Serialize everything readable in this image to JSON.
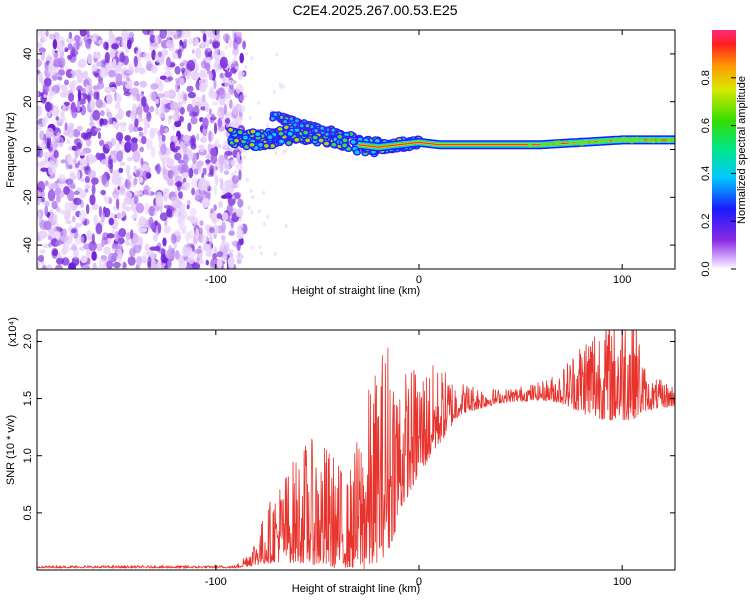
{
  "title": "C2E4.2025.267.00.53.E25",
  "chart_data": [
    {
      "type": "heatmap",
      "name": "spectrogram",
      "xlabel": "Height of straight line (km)",
      "ylabel": "Frequency (Hz)",
      "xlim": [
        -188,
        126
      ],
      "ylim": [
        -50,
        50
      ],
      "xticks": [
        -100,
        0,
        100
      ],
      "xtick_labels": [
        "-100",
        "0",
        "100"
      ],
      "yticks": [
        -40,
        -20,
        0,
        20,
        40
      ],
      "ytick_labels": [
        "-40",
        "-20",
        "0",
        "20",
        "40"
      ],
      "colorbar": {
        "label": "Normalized spectral amplitude",
        "range": [
          0,
          1
        ],
        "ticks": [
          0.0,
          0.2,
          0.4,
          0.6,
          0.8
        ],
        "tick_labels": [
          "0.0",
          "0.2",
          "0.4",
          "0.6",
          "0.8"
        ]
      },
      "features": {
        "noise_region_x": [
          -188,
          -88
        ],
        "signal_track": [
          {
            "x": -93,
            "f": 5
          },
          {
            "x": -80,
            "f": 4
          },
          {
            "x": -70,
            "f": 5
          },
          {
            "x": -60,
            "f": 7
          },
          {
            "x": -50,
            "f": 6
          },
          {
            "x": -40,
            "f": 5
          },
          {
            "x": -30,
            "f": 2
          },
          {
            "x": -20,
            "f": 1
          },
          {
            "x": -10,
            "f": 2
          },
          {
            "x": 0,
            "f": 3
          },
          {
            "x": 10,
            "f": 2
          },
          {
            "x": 20,
            "f": 2
          },
          {
            "x": 40,
            "f": 2
          },
          {
            "x": 60,
            "f": 2
          },
          {
            "x": 80,
            "f": 3
          },
          {
            "x": 100,
            "f": 4
          },
          {
            "x": 126,
            "f": 4
          }
        ],
        "upper_branch": [
          {
            "x": -72,
            "f": 14
          },
          {
            "x": -60,
            "f": 11
          },
          {
            "x": -50,
            "f": 9
          },
          {
            "x": -42,
            "f": 7
          }
        ]
      }
    },
    {
      "type": "line",
      "name": "snr",
      "xlabel": "Height of straight line (km)",
      "ylabel": "SNR (10 * v/v)",
      "y_multiplier": "(x10⁴)",
      "xlim": [
        -188,
        126
      ],
      "ylim": [
        0,
        2.1
      ],
      "xticks": [
        -100,
        0,
        100
      ],
      "xtick_labels": [
        "-100",
        "0",
        "100"
      ],
      "yticks": [
        0.5,
        1.0,
        1.5,
        2.0
      ],
      "ytick_labels": [
        "0.5",
        "1.0",
        "1.5",
        "2.0"
      ],
      "color": "#e8322c",
      "series": [
        {
          "name": "SNR",
          "envelope": [
            {
              "x": -188,
              "base": 0.02,
              "amp": 0.01
            },
            {
              "x": -90,
              "base": 0.02,
              "amp": 0.01
            },
            {
              "x": -82,
              "base": 0.05,
              "amp": 0.1
            },
            {
              "x": -70,
              "base": 0.12,
              "amp": 0.35
            },
            {
              "x": -55,
              "base": 0.14,
              "amp": 0.55
            },
            {
              "x": -45,
              "base": 0.1,
              "amp": 0.55
            },
            {
              "x": -35,
              "base": 0.08,
              "amp": 0.4
            },
            {
              "x": -25,
              "base": 0.12,
              "amp": 0.8
            },
            {
              "x": -15,
              "base": 0.3,
              "amp": 1.0
            },
            {
              "x": -8,
              "base": 0.65,
              "amp": 0.6
            },
            {
              "x": 0,
              "base": 0.9,
              "amp": 0.5
            },
            {
              "x": 10,
              "base": 1.15,
              "amp": 0.35
            },
            {
              "x": 20,
              "base": 1.38,
              "amp": 0.15
            },
            {
              "x": 40,
              "base": 1.47,
              "amp": 0.06
            },
            {
              "x": 60,
              "base": 1.5,
              "amp": 0.08
            },
            {
              "x": 70,
              "base": 1.48,
              "amp": 0.15
            },
            {
              "x": 85,
              "base": 1.4,
              "amp": 0.45
            },
            {
              "x": 95,
              "base": 1.38,
              "amp": 0.5
            },
            {
              "x": 105,
              "base": 1.4,
              "amp": 0.6
            },
            {
              "x": 112,
              "base": 1.42,
              "amp": 0.15
            },
            {
              "x": 126,
              "base": 1.45,
              "amp": 0.1
            }
          ]
        }
      ]
    }
  ]
}
